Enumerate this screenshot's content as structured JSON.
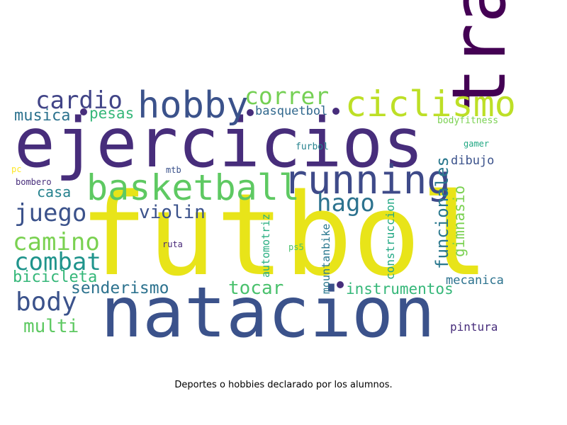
{
  "caption": "Deportes o hobbies declarado por los alumnos.",
  "palette": {
    "viridis_dark": "#440154",
    "purple": "#472d7b",
    "indigo": "#3b528b",
    "blue": "#2c728e",
    "teal": "#21918c",
    "green_teal": "#28ae80",
    "green": "#5ec962",
    "lime": "#addc30",
    "yellow": "#fde725"
  },
  "words": [
    {
      "text": "futbol",
      "color": "#e8e419"
    },
    {
      "text": "natacion",
      "color": "#3b528b"
    },
    {
      "text": "ejercicios",
      "color": "#472d7b"
    },
    {
      "text": "trail",
      "color": "#440154"
    },
    {
      "text": "running",
      "color": "#3e4a89"
    },
    {
      "text": "basketball",
      "color": "#5ec962"
    },
    {
      "text": "hobby",
      "color": "#3b528b"
    },
    {
      "text": "ciclismo",
      "color": "#bddf26"
    },
    {
      "text": "cardio",
      "color": "#414487"
    },
    {
      "text": "correr",
      "color": "#75d054"
    },
    {
      "text": "juego",
      "color": "#3b528b"
    },
    {
      "text": "hago",
      "color": "#2c728e"
    },
    {
      "text": "camino",
      "color": "#7ad151"
    },
    {
      "text": "combat",
      "color": "#1f948c"
    },
    {
      "text": "body",
      "color": "#3b528b"
    },
    {
      "text": "violin",
      "color": "#3b528b"
    },
    {
      "text": "tocar",
      "color": "#4ac16d"
    },
    {
      "text": "senderismo",
      "color": "#2c728e"
    },
    {
      "text": "multi",
      "color": "#5ec962"
    },
    {
      "text": "bicicleta",
      "color": "#35b779"
    },
    {
      "text": "casa",
      "color": "#26828e"
    },
    {
      "text": "musica",
      "color": "#2c728e"
    },
    {
      "text": "pesas",
      "color": "#35b779"
    },
    {
      "text": "basquetbol",
      "color": "#31688e"
    },
    {
      "text": "instrumentos",
      "color": "#35b779"
    },
    {
      "text": "funcionales",
      "color": "#2a788e"
    },
    {
      "text": "gimnasio",
      "color": "#7ad151"
    },
    {
      "text": "dibujo",
      "color": "#3b528b"
    },
    {
      "text": "bodyfitness",
      "color": "#7ad151"
    },
    {
      "text": "mecanica",
      "color": "#2c728e"
    },
    {
      "text": "pintura",
      "color": "#472d7b"
    },
    {
      "text": "construccion",
      "color": "#22a884"
    },
    {
      "text": "automotriz",
      "color": "#28ae80"
    },
    {
      "text": "mountanbike",
      "color": "#2a788e"
    },
    {
      "text": "furbol",
      "color": "#26828e"
    },
    {
      "text": "mtb",
      "color": "#3b528b"
    },
    {
      "text": "pc",
      "color": "#fde725"
    },
    {
      "text": "bombero",
      "color": "#472d7b"
    },
    {
      "text": "ruta",
      "color": "#482878"
    },
    {
      "text": "ps5",
      "color": "#4ac16d"
    },
    {
      "text": "gamer",
      "color": "#22a884"
    }
  ]
}
